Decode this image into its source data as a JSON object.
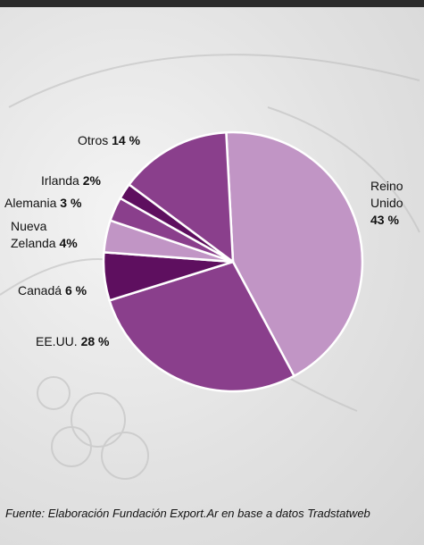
{
  "chart_data": {
    "type": "pie",
    "categories": [
      "Reino Unido",
      "EE.UU.",
      "Canadá",
      "Nueva Zelanda",
      "Alemania",
      "Irlanda",
      "Otros"
    ],
    "values": [
      43,
      28,
      6,
      4,
      3,
      2,
      14
    ],
    "value_labels": [
      "43 %",
      "28 %",
      "6 %",
      "4%",
      "3 %",
      "2%",
      "14 %"
    ],
    "colors": [
      "#c195c5",
      "#8a3f8c",
      "#5e0f5f",
      "#c195c5",
      "#8a3f8c",
      "#5e0f5f",
      "#8a3f8c"
    ],
    "source": "Fuente: Elaboración Fundación Export.Ar en base a datos Tradstatweb"
  }
}
